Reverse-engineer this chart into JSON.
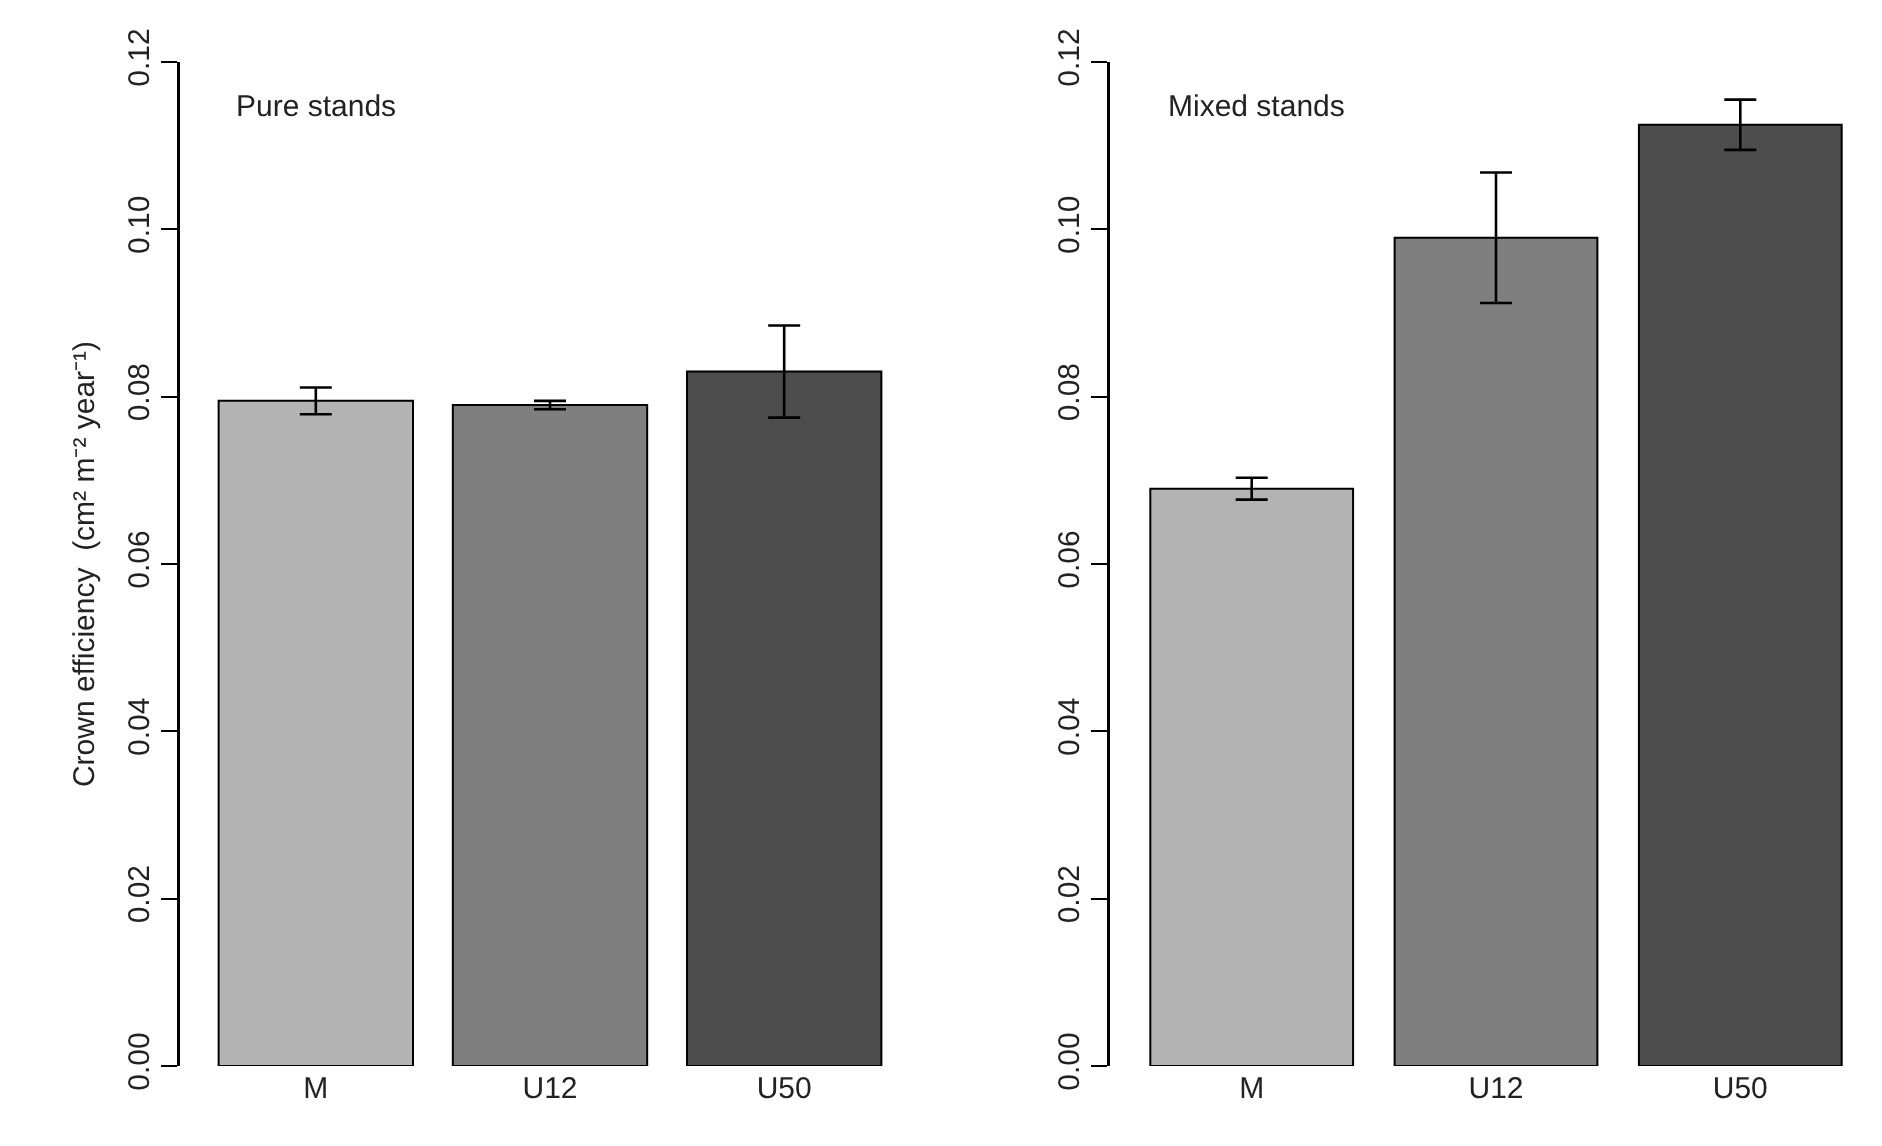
{
  "chart_data": [
    {
      "type": "bar",
      "categories": [
        "M",
        "U12",
        "U50"
      ],
      "values": [
        0.0795,
        0.079,
        0.083
      ],
      "errors": [
        0.0016,
        0.0005,
        0.0055
      ],
      "colors": [
        "#b3b3b3",
        "#7f7f7f",
        "#4d4d4d"
      ],
      "ylabel": "Crown efficiency  (cm² m⁻² year⁻¹)",
      "annotations": [
        "Pure stands"
      ],
      "ylim": [
        0,
        0.12
      ],
      "yticks": [
        {
          "value": 0,
          "label": "0.00"
        },
        {
          "value": 0.02,
          "label": "0.02"
        },
        {
          "value": 0.04,
          "label": "0.04"
        },
        {
          "value": 0.06,
          "label": "0.06"
        },
        {
          "value": 0.08,
          "label": "0.08"
        },
        {
          "value": 0.1,
          "label": "0.10"
        },
        {
          "value": 0.12,
          "label": "0.12"
        }
      ],
      "grid": false,
      "legend": false
    },
    {
      "type": "bar",
      "categories": [
        "M",
        "U12",
        "U50"
      ],
      "values": [
        0.069,
        0.099,
        0.1125
      ],
      "errors": [
        0.0013,
        0.0078,
        0.003
      ],
      "colors": [
        "#b3b3b3",
        "#7f7f7f",
        "#4d4d4d"
      ],
      "annotations": [
        "Mixed stands"
      ],
      "ylim": [
        0,
        0.12
      ],
      "yticks": [
        {
          "value": 0,
          "label": "0.00"
        },
        {
          "value": 0.02,
          "label": "0.02"
        },
        {
          "value": 0.04,
          "label": "0.04"
        },
        {
          "value": 0.06,
          "label": "0.06"
        },
        {
          "value": 0.08,
          "label": "0.08"
        },
        {
          "value": 0.1,
          "label": "0.10"
        },
        {
          "value": 0.12,
          "label": "0.12"
        }
      ],
      "grid": false,
      "legend": false
    }
  ]
}
